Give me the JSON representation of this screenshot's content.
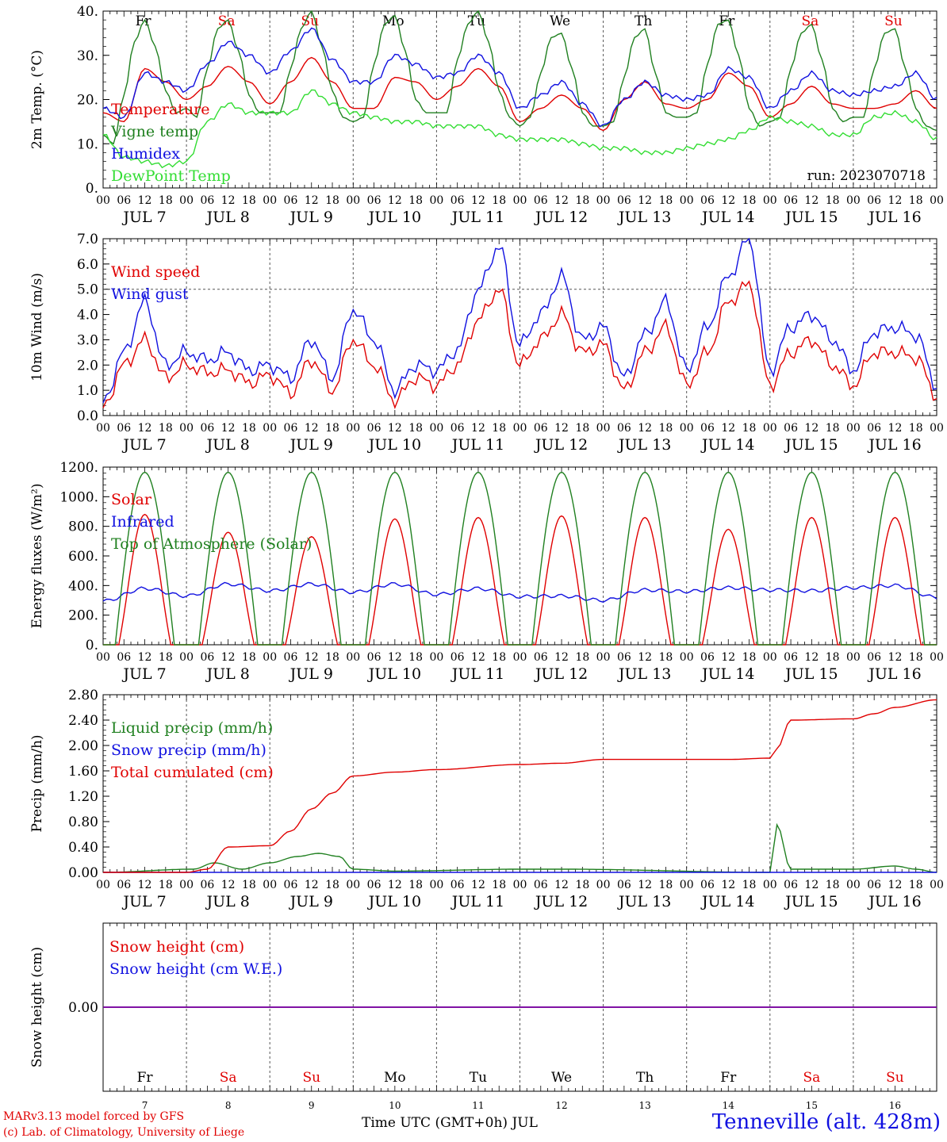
{
  "chart_data": {
    "type": "line",
    "colors": {
      "red": "#e00000",
      "green": "#208020",
      "blue": "#1010e0",
      "lime": "#33dd33",
      "purple": "#8000a0",
      "grid": "#555555"
    },
    "days": [
      "Fr",
      "Sa",
      "Su",
      "Mo",
      "Tu",
      "We",
      "Th",
      "Fr",
      "Sa",
      "Su"
    ],
    "weekend_days": [
      "Sa",
      "Su"
    ],
    "date_labels": [
      "JUL  7",
      "JUL  8",
      "JUL  9",
      "JUL 10",
      "JUL 11",
      "JUL 12",
      "JUL 13",
      "JUL 14",
      "JUL 15",
      "JUL 16"
    ],
    "hour_ticks": [
      "00",
      "06",
      "12",
      "18"
    ],
    "day_numbers": [
      "7",
      "8",
      "9",
      "10",
      "11",
      "12",
      "13",
      "14",
      "15",
      "16"
    ],
    "panels": [
      {
        "ylabel": "2m Temp. (°C)",
        "ylim": [
          0,
          40
        ],
        "yticks": [
          "0.",
          "10.",
          "20.",
          "30.",
          "40."
        ],
        "show_day_names": true,
        "run_label": "run: 2023070718",
        "series": [
          {
            "name": "Temperature",
            "color": "red",
            "hours": [
              0,
              6,
              12,
              18,
              24,
              30,
              36,
              42,
              48,
              54,
              60,
              66,
              72,
              78,
              84,
              90,
              96,
              102,
              108,
              114,
              120,
              126,
              132,
              138,
              144,
              150,
              156,
              162,
              168,
              174,
              180,
              186,
              192,
              198,
              204,
              210,
              216,
              222,
              228,
              234,
              240
            ],
            "values": [
              17,
              15,
              27,
              24,
              20,
              23,
              27.5,
              24,
              19,
              24,
              29.5,
              24,
              18,
              18,
              25,
              24,
              20,
              23,
              27,
              23,
              15,
              18,
              21,
              18,
              13,
              20,
              24,
              19,
              18,
              20,
              26,
              23,
              16,
              19,
              23,
              19,
              18,
              18,
              19,
              22,
              18
            ]
          },
          {
            "name": "Vigne temp",
            "color": "green",
            "hours": [
              0,
              3,
              6,
              9,
              12,
              15,
              18,
              21,
              24,
              27,
              30,
              33,
              36,
              39,
              42,
              45,
              48,
              51,
              54,
              57,
              60,
              63,
              66,
              69,
              72,
              75,
              78,
              81,
              84,
              87,
              90,
              93,
              96,
              99,
              102,
              105,
              108,
              111,
              114,
              117,
              120,
              123,
              126,
              129,
              132,
              135,
              138,
              141,
              144,
              147,
              150,
              153,
              156,
              159,
              162,
              165,
              168,
              171,
              174,
              177,
              180,
              183,
              186,
              189,
              192,
              195,
              198,
              201,
              204,
              207,
              210,
              213,
              216,
              219,
              222,
              225,
              228,
              231,
              234,
              237,
              240
            ],
            "values": [
              12,
              10,
              21,
              33,
              38,
              32,
              22,
              17,
              18,
              16,
              27,
              36,
              38,
              31,
              21,
              17,
              17,
              17,
              27,
              36,
              40,
              32,
              22,
              16,
              15,
              16,
              28,
              37,
              39,
              31,
              20,
              17,
              17,
              17,
              29,
              37,
              40,
              33,
              22,
              16,
              14,
              16,
              26,
              34,
              35,
              27,
              17,
              14,
              14,
              15,
              25,
              34,
              36,
              26,
              17,
              16,
              16,
              17,
              28,
              37,
              38,
              30,
              18,
              14,
              15,
              16,
              27,
              35,
              37,
              29,
              18,
              15,
              16,
              16,
              27,
              35,
              36,
              27,
              18,
              14,
              13
            ]
          },
          {
            "name": "Humidex",
            "color": "blue",
            "hours": [
              0,
              6,
              12,
              18,
              24,
              30,
              36,
              42,
              48,
              54,
              60,
              66,
              72,
              78,
              84,
              90,
              96,
              102,
              108,
              114,
              120,
              126,
              132,
              138,
              144,
              150,
              156,
              162,
              168,
              174,
              180,
              186,
              192,
              198,
              204,
              210,
              216,
              222,
              228,
              234,
              240
            ],
            "values": [
              18,
              16,
              26,
              24,
              22,
              28,
              33,
              30,
              26,
              31,
              36,
              29,
              24,
              24,
              30,
              28,
              25,
              26,
              30,
              26,
              18,
              21,
              24,
              19,
              14,
              20,
              24,
              21,
              20,
              21,
              27,
              25,
              18,
              22,
              26,
              22,
              21,
              22,
              23,
              26,
              20
            ]
          },
          {
            "name": "DewPoint Temp",
            "color": "lime",
            "hours": [
              0,
              6,
              12,
              18,
              24,
              30,
              36,
              42,
              48,
              54,
              60,
              66,
              72,
              78,
              84,
              90,
              96,
              102,
              108,
              114,
              120,
              126,
              132,
              138,
              144,
              150,
              156,
              162,
              168,
              174,
              180,
              186,
              192,
              198,
              204,
              210,
              216,
              222,
              228,
              234,
              240
            ],
            "values": [
              12,
              7,
              6,
              5,
              6,
              15,
              19,
              17,
              17,
              17,
              22,
              19,
              17,
              16,
              15,
              15,
              14,
              14,
              14,
              12,
              11,
              11,
              11,
              10,
              9,
              9,
              8,
              8,
              9,
              10,
              11,
              13,
              16,
              15,
              14,
              12,
              12,
              16,
              17,
              15,
              11
            ]
          }
        ]
      },
      {
        "ylabel": "10m Wind (m/s)",
        "ylim": [
          0,
          7
        ],
        "yticks": [
          "0.0",
          "1.0",
          "2.0",
          "3.0",
          "4.0",
          "5.0",
          "6.0",
          "7.0"
        ],
        "hline": 5,
        "series": [
          {
            "name": "Wind speed",
            "color": "red",
            "hours": [
              0,
              6,
              12,
              18,
              24,
              30,
              36,
              42,
              48,
              54,
              60,
              66,
              72,
              78,
              84,
              90,
              96,
              102,
              108,
              114,
              120,
              126,
              132,
              138,
              144,
              150,
              156,
              162,
              168,
              174,
              180,
              186,
              192,
              198,
              204,
              210,
              216,
              222,
              228,
              234,
              240
            ],
            "values": [
              0.3,
              2,
              3,
              1.5,
              2,
              1.7,
              1.8,
              1.3,
              1.6,
              0.9,
              2.2,
              1,
              3,
              2,
              0.6,
              1.5,
              1.2,
              2,
              3.8,
              5,
              2,
              3,
              4,
              2.5,
              2.8,
              1,
              2.5,
              3.5,
              1.2,
              2.5,
              4.5,
              5.2,
              1.2,
              2.5,
              3,
              2,
              1.2,
              2.5,
              2.5,
              2.3,
              0.8
            ]
          },
          {
            "name": "Wind gust",
            "color": "blue",
            "hours": [
              0,
              6,
              12,
              18,
              24,
              30,
              36,
              42,
              48,
              54,
              60,
              66,
              72,
              78,
              84,
              90,
              96,
              102,
              108,
              114,
              120,
              126,
              132,
              138,
              144,
              150,
              156,
              162,
              168,
              174,
              180,
              186,
              192,
              198,
              204,
              210,
              216,
              222,
              228,
              234,
              240
            ],
            "values": [
              0.5,
              2.5,
              4.5,
              2,
              2.5,
              2.2,
              2.5,
              1.8,
              2,
              1.5,
              3,
              1.5,
              4.2,
              3,
              1,
              2,
              1.8,
              2.6,
              5,
              6.7,
              2.8,
              4,
              5.5,
              3,
              3.5,
              1.5,
              3.2,
              4.5,
              1.8,
              3.5,
              5.5,
              7,
              1.8,
              3.5,
              4,
              3,
              1.8,
              3.3,
              3.5,
              3.2,
              1.2
            ]
          }
        ]
      },
      {
        "ylabel": "Energy fluxes (W/m²)",
        "ylim": [
          0,
          1200
        ],
        "yticks": [
          "0.",
          "200.",
          "400.",
          "600.",
          "800.",
          "1000.",
          "1200."
        ],
        "series": [
          {
            "name": "Solar",
            "color": "red",
            "day_peaks": [
              880,
              760,
              730,
              850,
              860,
              870,
              860,
              780,
              860,
              860
            ]
          },
          {
            "name": "Infrared",
            "color": "blue",
            "hours": [
              0,
              12,
              24,
              36,
              48,
              60,
              72,
              84,
              96,
              108,
              120,
              132,
              144,
              156,
              168,
              180,
              192,
              204,
              216,
              228,
              240
            ],
            "values": [
              295,
              380,
              330,
              410,
              365,
              410,
              355,
              410,
              340,
              380,
              325,
              330,
              300,
              370,
              360,
              385,
              370,
              365,
              385,
              400,
              320
            ]
          },
          {
            "name": "Top of Atmosphere (Solar)",
            "color": "green",
            "day_peak": 1165
          }
        ]
      },
      {
        "ylabel": "Precip (mm/h)",
        "ylim": [
          0,
          2.8
        ],
        "yticks": [
          "0.00",
          "0.40",
          "0.80",
          "1.20",
          "1.60",
          "2.00",
          "2.40",
          "2.80"
        ],
        "series": [
          {
            "name": "Liquid precip (mm/h)",
            "color": "green",
            "hours": [
              0,
              26,
              32,
              40,
              48,
              56,
              62,
              68,
              72,
              84,
              120,
              132,
              192,
              194,
              198,
              216,
              228,
              234,
              240
            ],
            "values": [
              0,
              0.05,
              0.15,
              0.05,
              0.15,
              0.25,
              0.3,
              0.25,
              0.05,
              0.02,
              0.05,
              0.05,
              0,
              0.75,
              0.05,
              0.05,
              0.1,
              0.05,
              0
            ]
          },
          {
            "name": "Snow precip (mm/h)",
            "color": "blue",
            "hours": [
              0,
              240
            ],
            "values": [
              0,
              0
            ]
          },
          {
            "name": "Total cumulated (cm)",
            "color": "red",
            "hours": [
              0,
              24,
              30,
              36,
              48,
              54,
              60,
              66,
              72,
              84,
              96,
              120,
              132,
              144,
              168,
              180,
              192,
              194,
              198,
              216,
              222,
              228,
              240
            ],
            "values": [
              0,
              0,
              0.05,
              0.4,
              0.42,
              0.65,
              1.0,
              1.25,
              1.52,
              1.58,
              1.62,
              1.7,
              1.72,
              1.78,
              1.78,
              1.78,
              1.8,
              1.95,
              2.4,
              2.42,
              2.5,
              2.6,
              2.72
            ]
          }
        ]
      },
      {
        "ylabel": "Snow height (cm)",
        "ylim": [
          -1,
          1
        ],
        "yticks": [
          "0.00"
        ],
        "series": [
          {
            "name": "Snow height (cm)",
            "color": "red",
            "hours": [
              0,
              240
            ],
            "values": [
              0,
              0
            ]
          },
          {
            "name": "Snow height (cm W.E.)",
            "color": "blue",
            "hours": [
              0,
              240
            ],
            "values": [
              0,
              0
            ]
          }
        ]
      }
    ],
    "xlabel": "Time UTC (GMT+0h) JUL"
  },
  "footer": {
    "model": "MARv3.13 model forced by GFS",
    "credit": "(c) Lab. of Climatology, University of Liege",
    "xlabel": "Time UTC (GMT+0h) JUL",
    "station": "Tenneville (alt. 428m)"
  }
}
